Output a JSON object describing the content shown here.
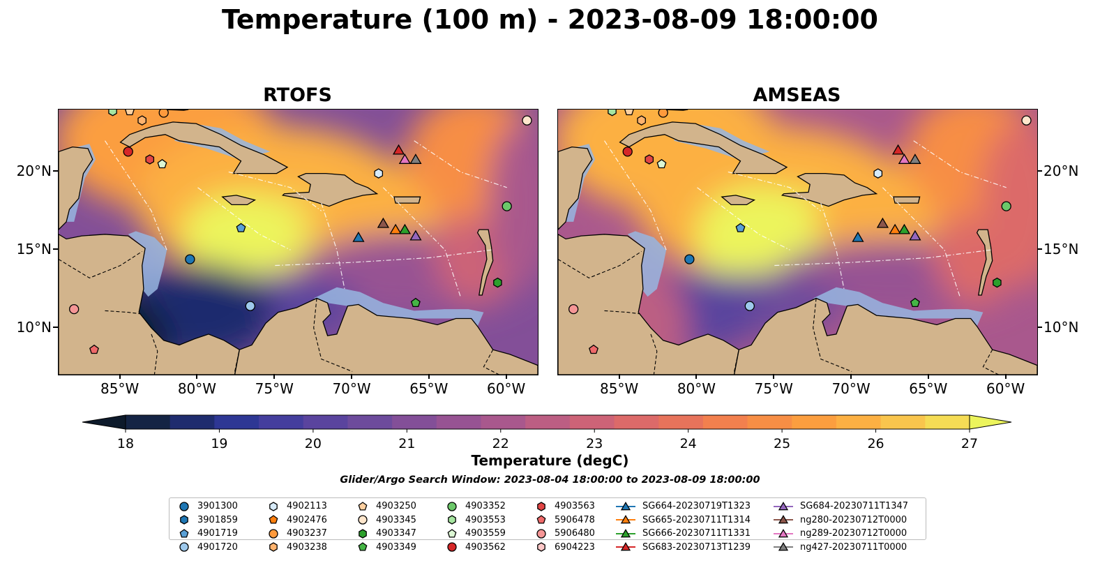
{
  "title": "Temperature (100 m) - 2023-08-09 18:00:00",
  "panels": [
    {
      "title": "RTOFS"
    },
    {
      "title": "AMSEAS"
    }
  ],
  "lon_ticks": [
    "85°W",
    "80°W",
    "75°W",
    "70°W",
    "65°W",
    "60°W"
  ],
  "lat_ticks": [
    "20°N",
    "15°N",
    "10°N"
  ],
  "colorbar": {
    "label": "Temperature (degC)",
    "ticks": [
      "18",
      "19",
      "20",
      "21",
      "22",
      "23",
      "24",
      "25",
      "26",
      "27"
    ],
    "colors": [
      "#0d1a2b",
      "#142444",
      "#1f2c6e",
      "#2e3794",
      "#443e9d",
      "#5a449e",
      "#6d4b9c",
      "#834f98",
      "#975393",
      "#a9588d",
      "#bc5e83",
      "#cd6377",
      "#dc6a69",
      "#e7735b",
      "#f2804e",
      "#f78e45",
      "#fb9e3f",
      "#fcb043",
      "#f9c54d",
      "#f5dc55",
      "#ecf45c"
    ],
    "colors_meaning": "18 to 27 degC in 0.5 steps, with under/over extensions"
  },
  "search_window": "Glider/Argo Search Window: 2023-08-04 18:00:00 to 2023-08-09 18:00:00",
  "legend": {
    "columns": [
      [
        {
          "label": "3901300",
          "marker": "circle",
          "color": "#1f77b4"
        },
        {
          "label": "3901859",
          "marker": "hexagon",
          "color": "#1f77b4"
        },
        {
          "label": "4901719",
          "marker": "pentagon",
          "color": "#5aa0d6"
        },
        {
          "label": "4901720",
          "marker": "circle",
          "color": "#9ec9ec"
        }
      ],
      [
        {
          "label": "4902113",
          "marker": "hexagon",
          "color": "#d7ebfa"
        },
        {
          "label": "4902476",
          "marker": "pentagon",
          "color": "#ff7f0e"
        },
        {
          "label": "4903237",
          "marker": "circle",
          "color": "#ff9a3c"
        },
        {
          "label": "4903238",
          "marker": "hexagon",
          "color": "#ffb36e"
        }
      ],
      [
        {
          "label": "4903250",
          "marker": "pentagon",
          "color": "#ffd0a0"
        },
        {
          "label": "4903345",
          "marker": "circle",
          "color": "#ffe6cc"
        },
        {
          "label": "4903347",
          "marker": "hexagon",
          "color": "#2ca02c"
        },
        {
          "label": "4903349",
          "marker": "pentagon",
          "color": "#45b545"
        }
      ],
      [
        {
          "label": "4903352",
          "marker": "circle",
          "color": "#6cc86a"
        },
        {
          "label": "4903553",
          "marker": "hexagon",
          "color": "#a6e5a0"
        },
        {
          "label": "4903559",
          "marker": "pentagon",
          "color": "#dcf7d4"
        },
        {
          "label": "4903562",
          "marker": "circle",
          "color": "#d62728"
        }
      ],
      [
        {
          "label": "4903563",
          "marker": "hexagon",
          "color": "#e24545"
        },
        {
          "label": "5906478",
          "marker": "pentagon",
          "color": "#ef6a6a"
        },
        {
          "label": "5906480",
          "marker": "circle",
          "color": "#f59696"
        },
        {
          "label": "6904223",
          "marker": "hexagon",
          "color": "#fcc7c7"
        }
      ],
      [
        {
          "label": "SG664-20230719T1323",
          "marker": "triangle",
          "color": "#1f77b4"
        },
        {
          "label": "SG665-20230711T1314",
          "marker": "triangle",
          "color": "#ff7f0e"
        },
        {
          "label": "SG666-20230711T1331",
          "marker": "triangle",
          "color": "#2ca02c"
        },
        {
          "label": "SG683-20230713T1239",
          "marker": "triangle",
          "color": "#d62728"
        }
      ],
      [
        {
          "label": "SG684-20230711T1347",
          "marker": "triangle",
          "color": "#9467bd"
        },
        {
          "label": "ng280-20230712T0000",
          "marker": "triangle",
          "color": "#8c564b"
        },
        {
          "label": "ng289-20230712T0000",
          "marker": "triangle",
          "color": "#e377c2"
        },
        {
          "label": "ng427-20230711T0000",
          "marker": "triangle",
          "color": "#7f7f7f"
        }
      ]
    ]
  },
  "map_colors": {
    "land": "#d2b48c",
    "ocean_shelf": "#97b6e1",
    "coast": "#000000",
    "eez_lines": "#ffffff"
  },
  "platforms": [
    {
      "id": "3901300",
      "lon": -80.5,
      "lat": 14.4
    },
    {
      "id": "4901719",
      "lon": -77.2,
      "lat": 16.4
    },
    {
      "id": "4901720",
      "lon": -76.6,
      "lat": 11.4
    },
    {
      "id": "4902113",
      "lon": -68.3,
      "lat": 19.9
    },
    {
      "id": "4903237",
      "lon": -82.2,
      "lat": 23.8
    },
    {
      "id": "4903238",
      "lon": -83.6,
      "lat": 23.3
    },
    {
      "id": "4903250",
      "lon": -84.4,
      "lat": 23.9
    },
    {
      "id": "4903345",
      "lon": -58.7,
      "lat": 23.3
    },
    {
      "id": "4903347",
      "lon": -60.6,
      "lat": 12.9
    },
    {
      "id": "4903349",
      "lon": -65.9,
      "lat": 11.6
    },
    {
      "id": "4903352",
      "lon": -60.0,
      "lat": 17.8
    },
    {
      "id": "4903553",
      "lon": -85.5,
      "lat": 23.9
    },
    {
      "id": "4903559",
      "lon": -82.3,
      "lat": 20.5
    },
    {
      "id": "4903562",
      "lon": -84.5,
      "lat": 21.3
    },
    {
      "id": "4903563",
      "lon": -83.1,
      "lat": 20.8
    },
    {
      "id": "5906478",
      "lon": -86.7,
      "lat": 8.6
    },
    {
      "id": "5906480",
      "lon": -88.0,
      "lat": 11.2
    },
    {
      "id": "SG664-20230719T1323",
      "lon": -69.6,
      "lat": 15.8
    },
    {
      "id": "SG665-20230711T1314",
      "lon": -67.2,
      "lat": 16.3
    },
    {
      "id": "SG666-20230711T1331",
      "lon": -66.6,
      "lat": 16.3
    },
    {
      "id": "SG683-20230713T1239",
      "lon": -67.0,
      "lat": 21.4
    },
    {
      "id": "SG684-20230711T1347",
      "lon": -65.9,
      "lat": 15.9
    },
    {
      "id": "ng280-20230712T0000",
      "lon": -68.0,
      "lat": 16.7
    },
    {
      "id": "ng289-20230712T0000",
      "lon": -66.6,
      "lat": 20.8
    },
    {
      "id": "ng427-20230711T0000",
      "lon": -65.9,
      "lat": 20.8
    }
  ]
}
